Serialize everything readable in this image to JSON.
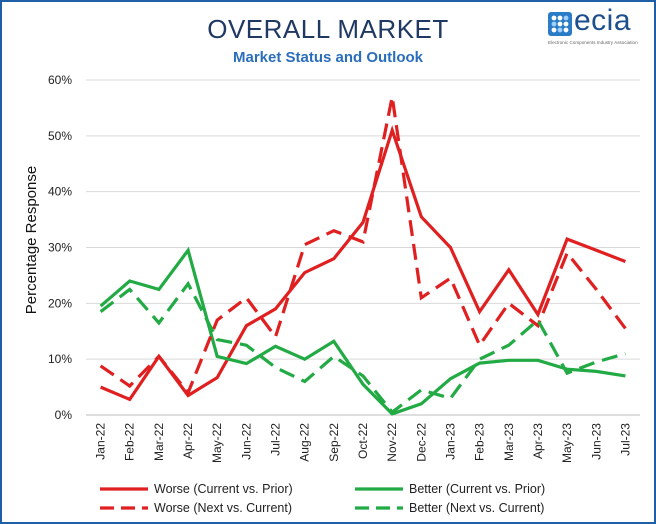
{
  "header": {
    "title": "OVERALL MARKET",
    "subtitle": "Market Status and Outlook"
  },
  "logo": {
    "text": "ecia",
    "tagline": "Electronic Components Industry Association",
    "icon": "ecia-logo-icon",
    "color": "#1d4f8c"
  },
  "chart_data": {
    "type": "line",
    "title": "OVERALL MARKET",
    "subtitle": "Market Status and Outlook",
    "xlabel": "",
    "ylabel": "Percentage Response",
    "ylim": [
      0,
      60
    ],
    "yticks": [
      0,
      10,
      20,
      30,
      40,
      50,
      60
    ],
    "ytick_labels": [
      "0%",
      "10%",
      "20%",
      "30%",
      "40%",
      "50%",
      "60%"
    ],
    "grid": true,
    "legend_position": "bottom",
    "categories": [
      "Jan-22",
      "Feb-22",
      "Mar-22",
      "Apr-22",
      "May-22",
      "Jun-22",
      "Jul-22",
      "Aug-22",
      "Sep-22",
      "Oct-22",
      "Nov-22",
      "Dec-22",
      "Jan-23",
      "Feb-23",
      "Mar-23",
      "Apr-23",
      "May-23",
      "Jun-23",
      "Jul-23"
    ],
    "series": [
      {
        "name": "Worse (Current vs. Prior)",
        "color": "#e02020",
        "dash": "solid",
        "values": [
          5,
          2.8,
          10.5,
          3.5,
          6.7,
          16,
          19,
          25.5,
          28,
          34.5,
          51,
          35.5,
          30,
          18.5,
          26,
          18,
          31.5,
          29.5,
          27.5
        ]
      },
      {
        "name": "Better (Current vs. Prior)",
        "color": "#22aa44",
        "dash": "solid",
        "values": [
          19.5,
          24,
          22.5,
          29.5,
          10.5,
          9.2,
          12.3,
          10,
          13.2,
          5.5,
          0.2,
          2,
          6.5,
          9.3,
          9.8,
          9.8,
          8.2,
          7.8,
          7
        ]
      },
      {
        "name": "Worse (Next vs. Current)",
        "color": "#e02020",
        "dash": "dashed",
        "values": [
          8.8,
          5.2,
          10.5,
          4,
          17,
          21,
          14,
          30.5,
          33,
          31,
          57,
          21,
          24.5,
          12.5,
          20,
          16,
          29,
          22.5,
          15.5
        ]
      },
      {
        "name": "Better (Next vs. Current)",
        "color": "#22aa44",
        "dash": "dashed",
        "values": [
          18.5,
          22.5,
          16.5,
          23.5,
          13.5,
          12.5,
          8.5,
          6,
          10.5,
          7,
          0.5,
          4.5,
          3,
          10,
          12.5,
          17,
          7.5,
          9.5,
          11
        ]
      }
    ]
  }
}
